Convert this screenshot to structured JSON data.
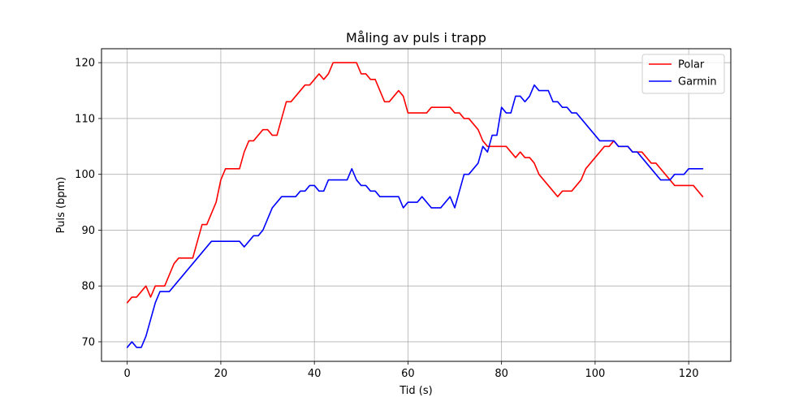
{
  "chart_data": {
    "type": "line",
    "title": "Måling av puls i trapp",
    "xlabel": "Tid (s)",
    "ylabel": "Puls (bpm)",
    "xlim": [
      -5.5,
      129
    ],
    "ylim": [
      66.5,
      122.5
    ],
    "xticks": [
      0,
      20,
      40,
      60,
      80,
      100,
      120
    ],
    "yticks": [
      70,
      80,
      90,
      100,
      110,
      120
    ],
    "grid": true,
    "legend_position": "top-right",
    "series": [
      {
        "name": "Polar",
        "color": "#ff0000",
        "x": [
          0,
          1,
          2,
          3,
          4,
          5,
          6,
          7,
          8,
          9,
          10,
          11,
          12,
          13,
          14,
          15,
          16,
          17,
          18,
          19,
          20,
          21,
          22,
          23,
          24,
          25,
          26,
          27,
          28,
          29,
          30,
          31,
          32,
          33,
          34,
          35,
          36,
          37,
          38,
          39,
          40,
          41,
          42,
          43,
          44,
          45,
          46,
          47,
          48,
          49,
          50,
          51,
          52,
          53,
          54,
          55,
          56,
          57,
          58,
          59,
          60,
          61,
          62,
          63,
          64,
          65,
          66,
          67,
          68,
          69,
          70,
          71,
          72,
          73,
          74,
          75,
          76,
          77,
          78,
          79,
          80,
          81,
          82,
          83,
          84,
          85,
          86,
          87,
          88,
          89,
          90,
          91,
          92,
          93,
          94,
          95,
          96,
          97,
          98,
          99,
          100,
          101,
          102,
          103,
          104,
          105,
          106,
          107,
          108,
          109,
          110,
          111,
          112,
          113,
          114,
          115,
          116,
          117,
          118,
          119,
          120,
          121,
          122,
          123
        ],
        "y": [
          77,
          78,
          78,
          79,
          80,
          78,
          80,
          80,
          80,
          82,
          84,
          85,
          85,
          85,
          85,
          88,
          91,
          91,
          93,
          95,
          99,
          101,
          101,
          101,
          101,
          104,
          106,
          106,
          107,
          108,
          108,
          107,
          107,
          110,
          113,
          113,
          114,
          115,
          116,
          116,
          117,
          118,
          117,
          118,
          120,
          120,
          120,
          120,
          120,
          120,
          118,
          118,
          117,
          117,
          115,
          113,
          113,
          114,
          115,
          114,
          111,
          111,
          111,
          111,
          111,
          112,
          112,
          112,
          112,
          112,
          111,
          111,
          110,
          110,
          109,
          108,
          106,
          105,
          105,
          105,
          105,
          105,
          104,
          103,
          104,
          103,
          103,
          102,
          100,
          99,
          98,
          97,
          96,
          97,
          97,
          97,
          98,
          99,
          101,
          102,
          103,
          104,
          105,
          105,
          106,
          105,
          105,
          105,
          104,
          104,
          104,
          103,
          102,
          102,
          101,
          100,
          99,
          98,
          98,
          98,
          98,
          98,
          97,
          96
        ]
      },
      {
        "name": "Garmin",
        "color": "#0000ff",
        "x": [
          0,
          1,
          2,
          3,
          4,
          5,
          6,
          7,
          8,
          9,
          10,
          11,
          12,
          13,
          14,
          15,
          16,
          17,
          18,
          19,
          20,
          21,
          22,
          23,
          24,
          25,
          26,
          27,
          28,
          29,
          30,
          31,
          32,
          33,
          34,
          35,
          36,
          37,
          38,
          39,
          40,
          41,
          42,
          43,
          44,
          45,
          46,
          47,
          48,
          49,
          50,
          51,
          52,
          53,
          54,
          55,
          56,
          57,
          58,
          59,
          60,
          61,
          62,
          63,
          64,
          65,
          66,
          67,
          68,
          69,
          70,
          71,
          72,
          73,
          74,
          75,
          76,
          77,
          78,
          79,
          80,
          81,
          82,
          83,
          84,
          85,
          86,
          87,
          88,
          89,
          90,
          91,
          92,
          93,
          94,
          95,
          96,
          97,
          98,
          99,
          100,
          101,
          102,
          103,
          104,
          105,
          106,
          107,
          108,
          109,
          110,
          111,
          112,
          113,
          114,
          115,
          116,
          117,
          118,
          119,
          120,
          121,
          122,
          123
        ],
        "y": [
          69,
          70,
          69,
          69,
          71,
          74,
          77,
          79,
          79,
          79,
          80,
          81,
          82,
          83,
          84,
          85,
          86,
          87,
          88,
          88,
          88,
          88,
          88,
          88,
          88,
          87,
          88,
          89,
          89,
          90,
          92,
          94,
          95,
          96,
          96,
          96,
          96,
          97,
          97,
          98,
          98,
          97,
          97,
          99,
          99,
          99,
          99,
          99,
          101,
          99,
          98,
          98,
          97,
          97,
          96,
          96,
          96,
          96,
          96,
          94,
          95,
          95,
          95,
          96,
          95,
          94,
          94,
          94,
          95,
          96,
          94,
          97,
          100,
          100,
          101,
          102,
          105,
          104,
          107,
          107,
          112,
          111,
          111,
          114,
          114,
          113,
          114,
          116,
          115,
          115,
          115,
          113,
          113,
          112,
          112,
          111,
          111,
          110,
          109,
          108,
          107,
          106,
          106,
          106,
          106,
          105,
          105,
          105,
          104,
          104,
          103,
          102,
          101,
          100,
          99,
          99,
          99,
          100,
          100,
          100,
          101,
          101,
          101,
          101
        ]
      }
    ]
  }
}
